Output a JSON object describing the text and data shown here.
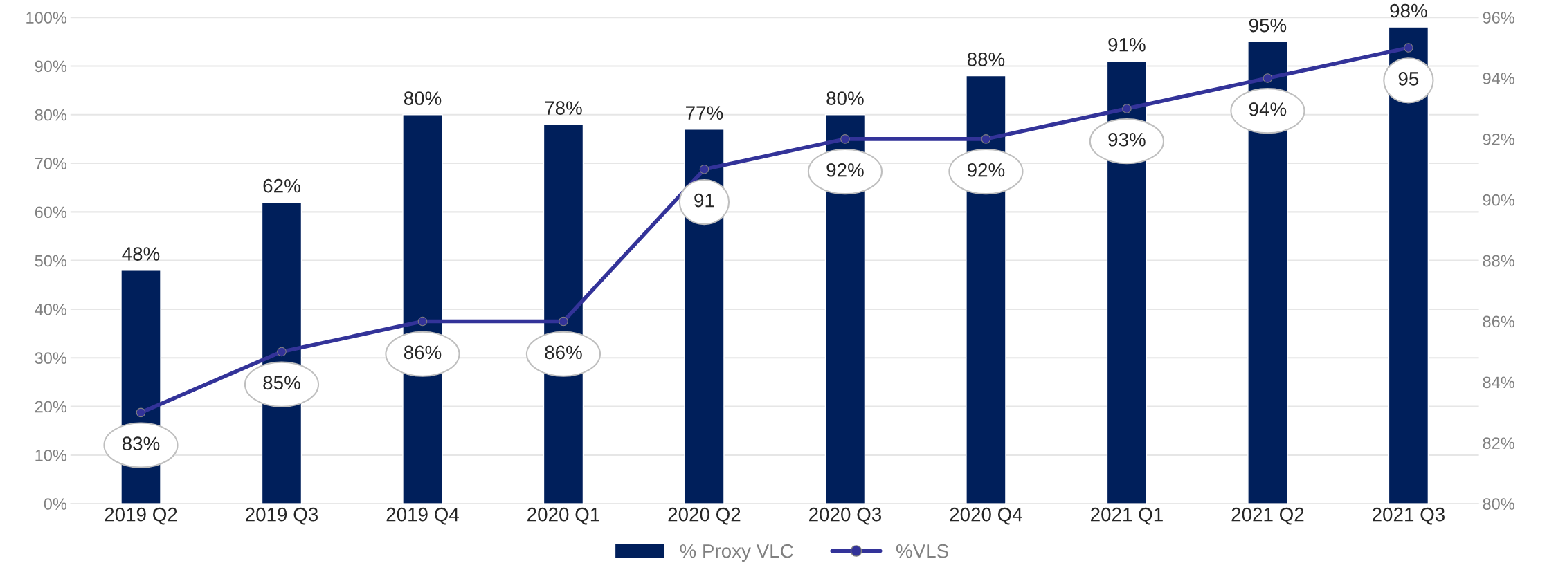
{
  "chart_data": {
    "type": "bar",
    "categories": [
      "2019 Q2",
      "2019 Q3",
      "2019 Q4",
      "2020 Q1",
      "2020 Q2",
      "2020 Q3",
      "2020 Q4",
      "2021 Q1",
      "2021 Q2",
      "2021 Q3"
    ],
    "series": [
      {
        "name": "% Proxy VLC",
        "color": "#001f5b",
        "values": [
          48,
          62,
          80,
          78,
          77,
          80,
          88,
          91,
          95,
          98
        ],
        "value_labels": [
          "48%",
          "62%",
          "80%",
          "78%",
          "77%",
          "80%",
          "88%",
          "91%",
          "95%",
          "98%"
        ]
      },
      {
        "name": "%VLS",
        "type": "line",
        "axis": "y2",
        "color": "#333399",
        "marker": "circle",
        "values": [
          83,
          85,
          86,
          86,
          91,
          92,
          92,
          93,
          94,
          95
        ],
        "value_labels": [
          "83%",
          "85%",
          "86%",
          "86%",
          "91",
          "92%",
          "92%",
          "93%",
          "94%",
          "95"
        ]
      }
    ],
    "ylim": [
      0,
      100
    ],
    "yticks": [
      {
        "value": 0,
        "label": "0%"
      },
      {
        "value": 10,
        "label": "10%"
      },
      {
        "value": 20,
        "label": "20%"
      },
      {
        "value": 30,
        "label": "30%"
      },
      {
        "value": 40,
        "label": "40%"
      },
      {
        "value": 50,
        "label": "50%"
      },
      {
        "value": 60,
        "label": "60%"
      },
      {
        "value": 70,
        "label": "70%"
      },
      {
        "value": 80,
        "label": "80%"
      },
      {
        "value": 90,
        "label": "90%"
      },
      {
        "value": 100,
        "label": "100%"
      }
    ],
    "y2lim": [
      80,
      96
    ],
    "y2ticks": [
      {
        "value": 80,
        "label": "80%"
      },
      {
        "value": 82,
        "label": "82%"
      },
      {
        "value": 84,
        "label": "84%"
      },
      {
        "value": 86,
        "label": "86%"
      },
      {
        "value": 88,
        "label": "88%"
      },
      {
        "value": 90,
        "label": "90%"
      },
      {
        "value": 92,
        "label": "92%"
      },
      {
        "value": 94,
        "label": "94%"
      },
      {
        "value": 96,
        "label": "96%"
      }
    ],
    "grid": "y",
    "legend": "bottom"
  }
}
